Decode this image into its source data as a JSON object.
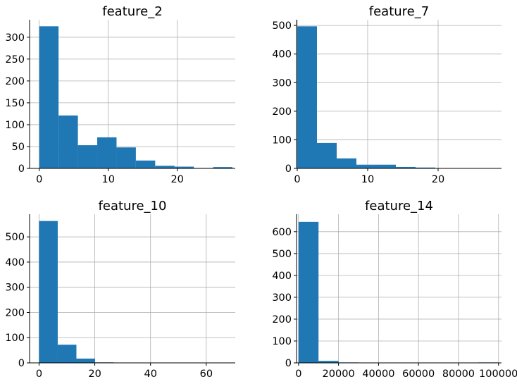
{
  "chart_data": [
    {
      "type": "bar",
      "title": "feature_2",
      "xlabel": "",
      "ylabel": "",
      "xlim": [
        -1.4,
        28.4
      ],
      "ylim": [
        0,
        340
      ],
      "xticks": [
        0,
        10,
        20
      ],
      "xtick_labels": [
        "0",
        "10",
        "20"
      ],
      "yticks": [
        0,
        50,
        100,
        150,
        200,
        250,
        300
      ],
      "ytick_labels": [
        "0",
        "50",
        "100",
        "150",
        "200",
        "250",
        "300"
      ],
      "grid": true,
      "bins": [
        {
          "x0": 0.0,
          "x1": 2.8,
          "count": 325
        },
        {
          "x0": 2.8,
          "x1": 5.6,
          "count": 121
        },
        {
          "x0": 5.6,
          "x1": 8.4,
          "count": 53
        },
        {
          "x0": 8.4,
          "x1": 11.2,
          "count": 71
        },
        {
          "x0": 11.2,
          "x1": 14.0,
          "count": 48
        },
        {
          "x0": 14.0,
          "x1": 16.8,
          "count": 18
        },
        {
          "x0": 16.8,
          "x1": 19.6,
          "count": 6
        },
        {
          "x0": 19.6,
          "x1": 22.4,
          "count": 4
        },
        {
          "x0": 22.4,
          "x1": 25.2,
          "count": 1
        },
        {
          "x0": 25.2,
          "x1": 28.0,
          "count": 3
        }
      ],
      "color": "#1f77b4"
    },
    {
      "type": "bar",
      "title": "feature_7",
      "xlabel": "",
      "ylabel": "",
      "xlim": [
        -0.1,
        29.0
      ],
      "ylim": [
        0,
        520
      ],
      "xticks": [
        0,
        10,
        20
      ],
      "xtick_labels": [
        "0",
        "10",
        "20"
      ],
      "yticks": [
        0,
        100,
        200,
        300,
        400,
        500
      ],
      "ytick_labels": [
        "0",
        "100",
        "200",
        "300",
        "400",
        "500"
      ],
      "grid": true,
      "bins": [
        {
          "x0": 0.0,
          "x1": 2.8,
          "count": 497
        },
        {
          "x0": 2.8,
          "x1": 5.6,
          "count": 89
        },
        {
          "x0": 5.6,
          "x1": 8.4,
          "count": 35
        },
        {
          "x0": 8.4,
          "x1": 11.2,
          "count": 13
        },
        {
          "x0": 11.2,
          "x1": 14.0,
          "count": 13
        },
        {
          "x0": 14.0,
          "x1": 16.8,
          "count": 5
        },
        {
          "x0": 16.8,
          "x1": 19.6,
          "count": 3
        },
        {
          "x0": 19.6,
          "x1": 22.4,
          "count": 1
        },
        {
          "x0": 22.4,
          "x1": 25.2,
          "count": 0
        },
        {
          "x0": 25.2,
          "x1": 28.0,
          "count": 0
        }
      ],
      "color": "#1f77b4"
    },
    {
      "type": "bar",
      "title": "feature_10",
      "xlabel": "",
      "ylabel": "",
      "xlim": [
        -3.4,
        70.4
      ],
      "ylim": [
        0,
        590
      ],
      "xticks": [
        0,
        20,
        40,
        60
      ],
      "xtick_labels": [
        "0",
        "20",
        "40",
        "60"
      ],
      "yticks": [
        0,
        100,
        200,
        300,
        400,
        500
      ],
      "ytick_labels": [
        "0",
        "100",
        "200",
        "300",
        "400",
        "500"
      ],
      "grid": true,
      "bins": [
        {
          "x0": 0.0,
          "x1": 6.7,
          "count": 563
        },
        {
          "x0": 6.7,
          "x1": 13.4,
          "count": 72
        },
        {
          "x0": 13.4,
          "x1": 20.1,
          "count": 17
        },
        {
          "x0": 20.1,
          "x1": 26.8,
          "count": 2
        },
        {
          "x0": 26.8,
          "x1": 33.5,
          "count": 0
        },
        {
          "x0": 33.5,
          "x1": 40.2,
          "count": 1
        },
        {
          "x0": 40.2,
          "x1": 46.9,
          "count": 0
        },
        {
          "x0": 46.9,
          "x1": 53.6,
          "count": 0
        },
        {
          "x0": 53.6,
          "x1": 60.3,
          "count": 0
        },
        {
          "x0": 60.3,
          "x1": 67.0,
          "count": 1
        }
      ],
      "color": "#1f77b4"
    },
    {
      "type": "bar",
      "title": "feature_14",
      "xlabel": "",
      "ylabel": "",
      "xlim": [
        -1000,
        101500
      ],
      "ylim": [
        0,
        680
      ],
      "xticks": [
        0,
        20000,
        40000,
        60000,
        80000,
        100000
      ],
      "xtick_labels": [
        "0",
        "20000",
        "40000",
        "60000",
        "80000",
        "100000"
      ],
      "yticks": [
        0,
        100,
        200,
        300,
        400,
        500,
        600
      ],
      "ytick_labels": [
        "0",
        "100",
        "200",
        "300",
        "400",
        "500",
        "600"
      ],
      "grid": true,
      "bins": [
        {
          "x0": 0,
          "x1": 10000,
          "count": 645
        },
        {
          "x0": 10000,
          "x1": 20000,
          "count": 9
        },
        {
          "x0": 20000,
          "x1": 30000,
          "count": 2
        },
        {
          "x0": 30000,
          "x1": 40000,
          "count": 1
        },
        {
          "x0": 40000,
          "x1": 50000,
          "count": 0
        },
        {
          "x0": 50000,
          "x1": 60000,
          "count": 1
        },
        {
          "x0": 60000,
          "x1": 70000,
          "count": 0
        },
        {
          "x0": 70000,
          "x1": 80000,
          "count": 0
        },
        {
          "x0": 80000,
          "x1": 90000,
          "count": 0
        },
        {
          "x0": 90000,
          "x1": 100000,
          "count": 2
        }
      ],
      "color": "#1f77b4"
    }
  ]
}
